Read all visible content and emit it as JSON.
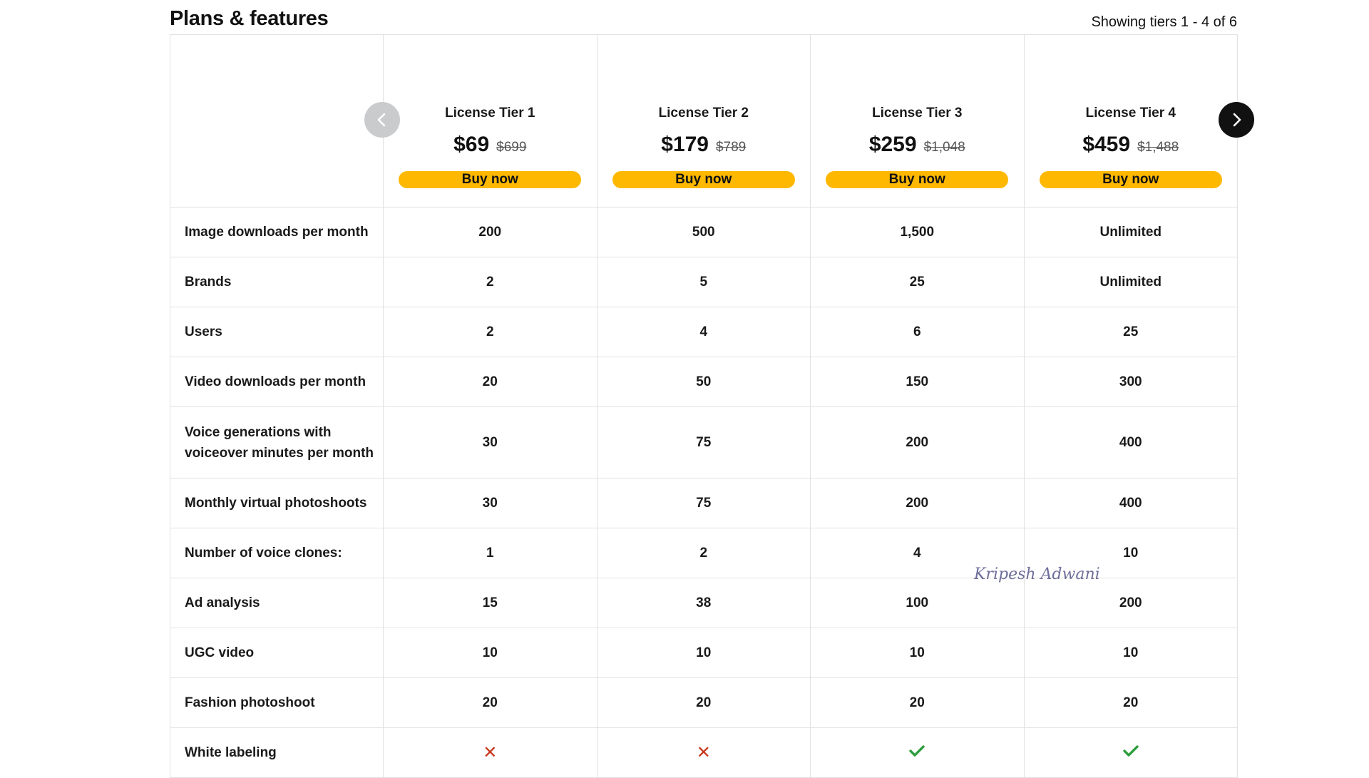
{
  "header": {
    "title": "Plans & features",
    "tier_range": "Showing tiers 1 - 4 of 6"
  },
  "tiers": [
    {
      "name": "License Tier 1",
      "price": "$69",
      "old_price": "$699",
      "button": "Buy now"
    },
    {
      "name": "License Tier 2",
      "price": "$179",
      "old_price": "$789",
      "button": "Buy now"
    },
    {
      "name": "License Tier 3",
      "price": "$259",
      "old_price": "$1,048",
      "button": "Buy now"
    },
    {
      "name": "License Tier 4",
      "price": "$459",
      "old_price": "$1,488",
      "button": "Buy now"
    }
  ],
  "features": [
    {
      "label": "Image downloads per month",
      "values": [
        "200",
        "500",
        "1,500",
        "Unlimited"
      ]
    },
    {
      "label": "Brands",
      "values": [
        "2",
        "5",
        "25",
        "Unlimited"
      ]
    },
    {
      "label": "Users",
      "values": [
        "2",
        "4",
        "6",
        "25"
      ]
    },
    {
      "label": "Video downloads per month",
      "values": [
        "20",
        "50",
        "150",
        "300"
      ]
    },
    {
      "label": "Voice generations with voiceover minutes per month",
      "values": [
        "30",
        "75",
        "200",
        "400"
      ]
    },
    {
      "label": "Monthly virtual photoshoots",
      "values": [
        "30",
        "75",
        "200",
        "400"
      ]
    },
    {
      "label": "Number of voice clones:",
      "values": [
        "1",
        "2",
        "4",
        "10"
      ]
    },
    {
      "label": "Ad analysis",
      "values": [
        "15",
        "38",
        "100",
        "200"
      ]
    },
    {
      "label": "UGC video",
      "values": [
        "10",
        "10",
        "10",
        "10"
      ]
    },
    {
      "label": "Fashion photoshoot",
      "values": [
        "20",
        "20",
        "20",
        "20"
      ]
    },
    {
      "label": "White labeling",
      "values": [
        false,
        false,
        true,
        true
      ]
    }
  ],
  "nav": {
    "prev_icon": "chevron-left-icon",
    "next_icon": "chevron-right-icon"
  },
  "signature": {
    "text": "Kripesh Adwani"
  },
  "colors": {
    "accent": "#ffb800",
    "cross": "#c8381d",
    "check": "#2e9e3e",
    "nav_prev_bg": "#c9cbcd",
    "nav_next_bg": "#111111"
  }
}
